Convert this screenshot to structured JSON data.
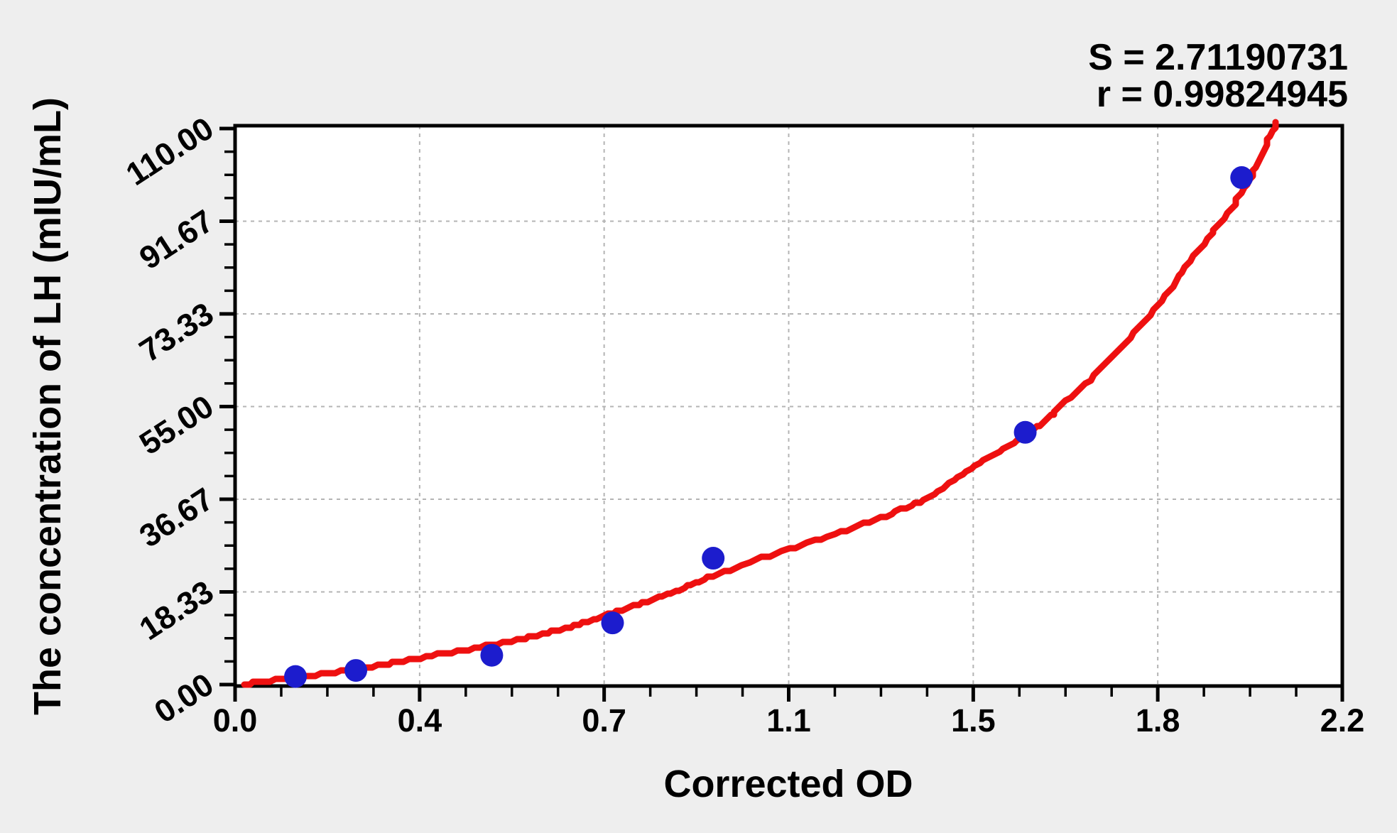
{
  "stats": {
    "s_label": "S = 2.71190731",
    "r_label": "r = 0.99824945"
  },
  "chart_data": {
    "type": "scatter",
    "title": "",
    "xlabel": "Corrected OD",
    "ylabel": "The concentration of LH (mIU/mL)",
    "xlim": [
      0,
      2.2
    ],
    "ylim": [
      0,
      110
    ],
    "grid": "dashed lines at interior major ticks, both axes",
    "legend": "none",
    "x_ticks": {
      "values": [
        0,
        0.3667,
        0.7333,
        1.1,
        1.4667,
        1.8333,
        2.2
      ],
      "labels": [
        "0.0",
        "0.4",
        "0.7",
        "1.1",
        "1.5",
        "1.8",
        "2.2"
      ],
      "minor_per_interval": 3
    },
    "y_ticks": {
      "values": [
        0,
        18.33,
        36.67,
        55.0,
        73.33,
        91.67,
        110.0
      ],
      "labels": [
        "0.00",
        "18.33",
        "36.67",
        "55.00",
        "73.33",
        "91.67",
        "110.00"
      ],
      "minor_per_interval": 3,
      "label_rotation_deg": -33
    },
    "series": [
      {
        "name": "standard-points",
        "type": "scatter",
        "color": "#1c1ccd",
        "marker_radius_px": 16,
        "points": [
          [
            0.12,
            1.6
          ],
          [
            0.24,
            2.8
          ],
          [
            0.51,
            5.8
          ],
          [
            0.75,
            12.2
          ],
          [
            0.95,
            25.0
          ],
          [
            1.57,
            49.9
          ],
          [
            2.0,
            100.3
          ]
        ]
      },
      {
        "name": "fitted-curve",
        "type": "line",
        "color": "#ee1010",
        "stroke_width_px": 9,
        "points": [
          [
            0.02,
            0.1
          ],
          [
            0.12,
            1.4
          ],
          [
            0.24,
            3.0
          ],
          [
            0.37,
            5.3
          ],
          [
            0.51,
            7.8
          ],
          [
            0.62,
            10.2
          ],
          [
            0.73,
            13.5
          ],
          [
            0.85,
            17.5
          ],
          [
            0.95,
            21.5
          ],
          [
            1.1,
            26.8
          ],
          [
            1.25,
            31.8
          ],
          [
            1.37,
            36.7
          ],
          [
            1.47,
            43.0
          ],
          [
            1.58,
            50.0
          ],
          [
            1.64,
            55.0
          ],
          [
            1.72,
            62.5
          ],
          [
            1.82,
            73.3
          ],
          [
            1.9,
            84.0
          ],
          [
            1.96,
            91.7
          ],
          [
            2.02,
            100.6
          ],
          [
            2.07,
            111.5
          ]
        ]
      }
    ],
    "annotations": [
      "S = 2.71190731",
      "r = 0.99824945"
    ]
  },
  "colors": {
    "background": "#eeeeee",
    "plot_background": "#ffffff",
    "frame": "#000000",
    "gridline": "#b4b4b4",
    "curve_red": "#ee1010",
    "point_blue": "#1c1ccd",
    "text": "#000000"
  }
}
